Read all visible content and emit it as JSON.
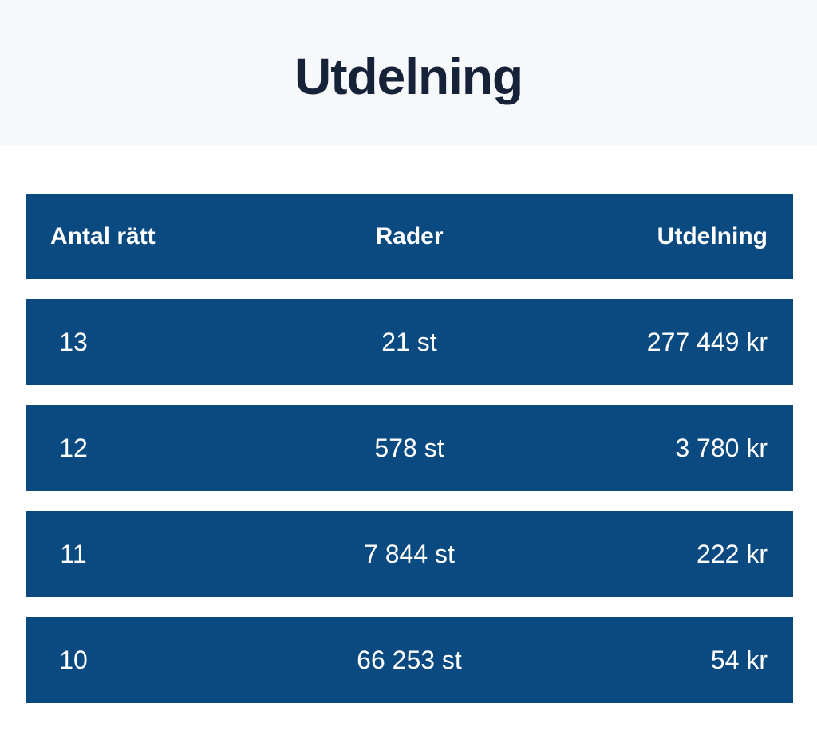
{
  "page": {
    "title": "Utdelning"
  },
  "colors": {
    "table_blue": "#0b4a80",
    "title_navy": "#152238",
    "band_background": "#f7f8fa",
    "row_text": "#ffffff"
  },
  "table": {
    "headers": [
      "Antal rätt",
      "Rader",
      "Utdelning"
    ],
    "rows": [
      {
        "antal_ratt": "13",
        "rader": "21 st",
        "utdelning": "277 449 kr"
      },
      {
        "antal_ratt": "12",
        "rader": "578 st",
        "utdelning": "3 780 kr"
      },
      {
        "antal_ratt": "11",
        "rader": "7 844 st",
        "utdelning": "222 kr"
      },
      {
        "antal_ratt": "10",
        "rader": "66 253 st",
        "utdelning": "54 kr"
      }
    ]
  }
}
